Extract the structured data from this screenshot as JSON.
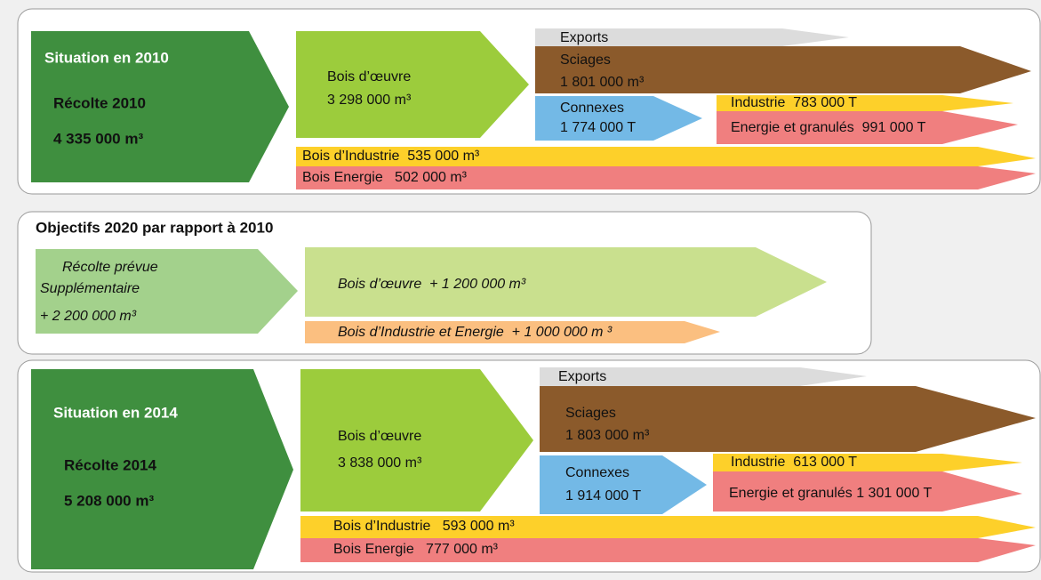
{
  "situation_2010": {
    "title": "Situation en 2010",
    "harvest_label": "Récolte 2010",
    "harvest_value": "4 335 000 m³",
    "bois_oeuvre_label": "Bois d’œuvre",
    "bois_oeuvre_value": "3 298 000 m³",
    "exports": "Exports",
    "sciages_label": "Sciages",
    "sciages_value": "1 801 000 m³",
    "connexes_label": "Connexes",
    "connexes_value": "1 774 000 T",
    "industrie": "Industrie  783 000 T",
    "energie": "Energie et granulés  991 000 T",
    "bois_industrie": "Bois d’Industrie  535 000 m³",
    "bois_energie": "Bois Energie   502 000 m³"
  },
  "objectifs_2020": {
    "title": "Objectifs 2020 par rapport à 2010",
    "harvest_label_1": "Récolte prévue",
    "harvest_label_2": "Supplémentaire",
    "harvest_value": "+ 2 200 000 m³",
    "bois_oeuvre": "Bois d’œuvre  + 1 200 000 m³",
    "bois_industrie_energie": "Bois d’Industrie et Energie  + 1 000 000 m ³"
  },
  "situation_2014": {
    "title": "Situation en 2014",
    "harvest_label": "Récolte 2014",
    "harvest_value": "5 208 000 m³",
    "bois_oeuvre_label": "Bois d’œuvre",
    "bois_oeuvre_value": "3 838 000 m³",
    "exports": "Exports",
    "sciages_label": "Sciages",
    "sciages_value": "1 803 000 m³",
    "connexes_label": "Connexes",
    "connexes_value": "1 914 000 T",
    "industrie": "Industrie  613 000 T",
    "energie": "Energie et granulés 1 301 000 T",
    "bois_industrie": "Bois d’Industrie   593 000 m³",
    "bois_energie": "Bois Energie   777 000 m³"
  }
}
